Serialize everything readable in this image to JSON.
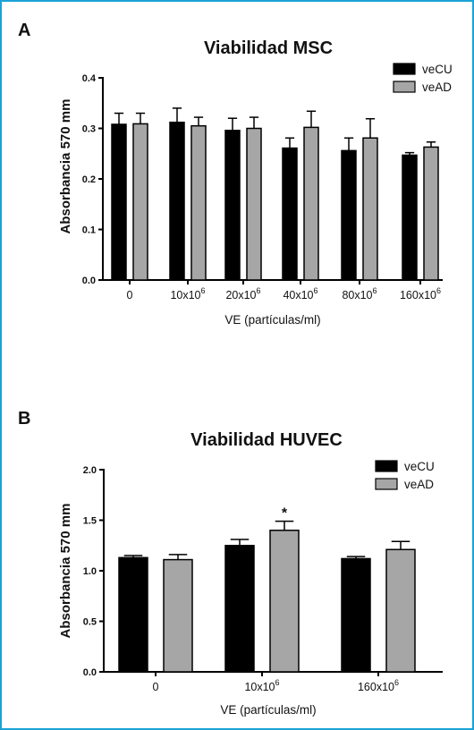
{
  "chart_data": [
    {
      "panel_label": "A",
      "type": "bar",
      "title": "Viabilidad MSC",
      "xlabel": "VE (partículas/ml)",
      "ylabel": "Absorbancia 570 mm",
      "ylim": [
        0,
        0.4
      ],
      "yticks": [
        "0.0",
        "0.1",
        "0.2",
        "0.3",
        "0.4"
      ],
      "categories": [
        {
          "base": "0",
          "exp": ""
        },
        {
          "base": "10x10",
          "exp": "6"
        },
        {
          "base": "20x10",
          "exp": "6"
        },
        {
          "base": "40x10",
          "exp": "6"
        },
        {
          "base": "80x10",
          "exp": "6"
        },
        {
          "base": "160x10",
          "exp": "6"
        }
      ],
      "series": [
        {
          "name": "veCU",
          "color": "#000000",
          "values": [
            0.308,
            0.312,
            0.296,
            0.261,
            0.256,
            0.247
          ],
          "errors": [
            0.022,
            0.028,
            0.024,
            0.02,
            0.025,
            0.005
          ]
        },
        {
          "name": "veAD",
          "color": "#a6a6a6",
          "values": [
            0.309,
            0.305,
            0.3,
            0.302,
            0.281,
            0.263
          ],
          "errors": [
            0.021,
            0.017,
            0.022,
            0.032,
            0.038,
            0.01
          ]
        }
      ],
      "legend_position": "top-right",
      "annotations": []
    },
    {
      "panel_label": "B",
      "type": "bar",
      "title": "Viabilidad HUVEC",
      "xlabel": "VE (partículas/ml)",
      "ylabel": "Absorbancia 570 mm",
      "ylim": [
        0,
        2.0
      ],
      "yticks": [
        "0.0",
        "0.5",
        "1.0",
        "1.5",
        "2.0"
      ],
      "categories": [
        {
          "base": "0",
          "exp": ""
        },
        {
          "base": "10x10",
          "exp": "6"
        },
        {
          "base": "160x10",
          "exp": "6"
        }
      ],
      "series": [
        {
          "name": "veCU",
          "color": "#000000",
          "values": [
            1.13,
            1.25,
            1.12
          ],
          "errors": [
            0.02,
            0.06,
            0.02
          ]
        },
        {
          "name": "veAD",
          "color": "#a6a6a6",
          "values": [
            1.11,
            1.4,
            1.21
          ],
          "errors": [
            0.05,
            0.09,
            0.08
          ]
        }
      ],
      "legend_position": "top-right",
      "annotations": [
        {
          "text": "*",
          "category_index": 1,
          "series_index": 1
        }
      ]
    }
  ]
}
